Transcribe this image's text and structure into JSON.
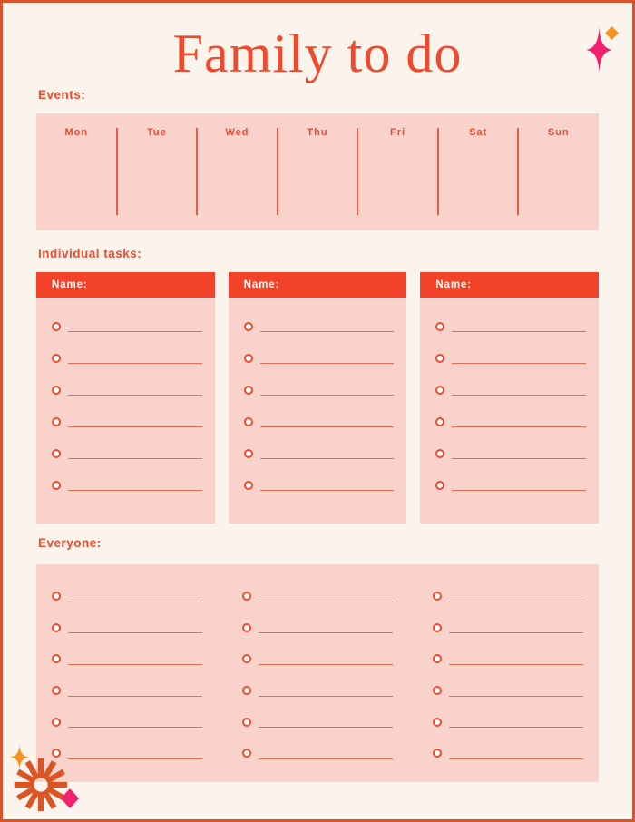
{
  "title": "Family to do",
  "colors": {
    "background": "#FBF4ED",
    "border": "#DC532B",
    "panel_pink": "#F9D3CB",
    "accent": "#EF4A2E",
    "header_bar": "#F2432A",
    "line": "#E96B51",
    "divider": "#F2583B",
    "burst_orange": "#DB5524",
    "star_pink": "#F2216E",
    "sparkle_orange": "#F6921E"
  },
  "events": {
    "label": "Events:",
    "days": [
      "Mon",
      "Tue",
      "Wed",
      "Thu",
      "Fri",
      "Sat",
      "Sun"
    ]
  },
  "individual_tasks": {
    "label": "Individual tasks:",
    "cards": [
      {
        "header": "Name:",
        "rows": 6
      },
      {
        "header": "Name:",
        "rows": 6
      },
      {
        "header": "Name:",
        "rows": 6
      }
    ]
  },
  "everyone": {
    "label": "Everyone:",
    "columns": 3,
    "rows": 6
  },
  "decorations": [
    "sparkle-star-pink-icon",
    "diamond-orange-icon",
    "sparkle-star-orange-icon",
    "starburst-icon",
    "diamond-pink-icon"
  ]
}
